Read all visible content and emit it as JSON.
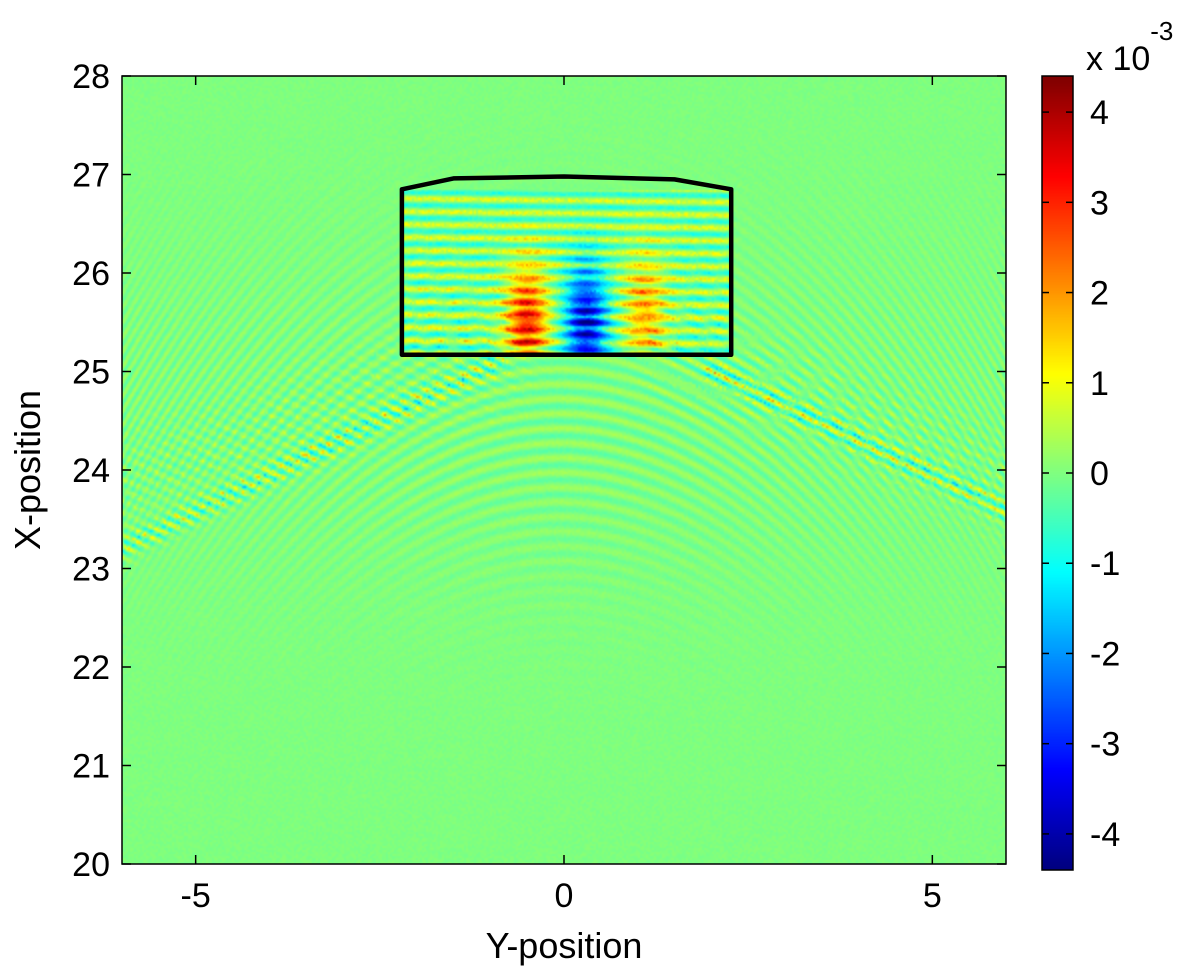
{
  "chart_data": {
    "type": "heatmap",
    "title": "",
    "xlabel": "Y-position",
    "ylabel": "X-position",
    "xlim": [
      -6,
      6
    ],
    "ylim": [
      20,
      28
    ],
    "x_ticks": [
      -5,
      0,
      5
    ],
    "x_tick_labels": [
      "-5",
      "0",
      "5"
    ],
    "y_ticks": [
      20,
      21,
      22,
      23,
      24,
      25,
      26,
      27,
      28
    ],
    "y_tick_labels": [
      "20",
      "21",
      "22",
      "23",
      "24",
      "25",
      "26",
      "27",
      "28"
    ],
    "colorbar": {
      "colormap": "jet",
      "clim": [
        -4.4,
        4.4
      ],
      "ticks": [
        -4,
        -3,
        -2,
        -1,
        0,
        1,
        2,
        3,
        4
      ],
      "tick_labels": [
        "-4",
        "-3",
        "-2",
        "-1",
        "0",
        "1",
        "2",
        "3",
        "4"
      ],
      "multiplier_base": "x 10",
      "multiplier_exponent": "-3"
    },
    "grid": false,
    "legend": "none",
    "background_value": 0,
    "outline": {
      "color": "#000000",
      "points": [
        [
          -2.2,
          25.17
        ],
        [
          2.27,
          25.17
        ],
        [
          2.27,
          26.85
        ],
        [
          1.5,
          26.95
        ],
        [
          0.0,
          26.98
        ],
        [
          -1.5,
          26.96
        ],
        [
          -2.2,
          26.85
        ]
      ]
    },
    "features": [
      {
        "name": "interior-fringes",
        "y_range": [
          -2.2,
          2.27
        ],
        "x_range": [
          25.17,
          26.85
        ],
        "amplitude": 1.2
      },
      {
        "name": "positive-lobe",
        "y_center": -0.5,
        "x_center": 25.5,
        "amplitude": 3.5
      },
      {
        "name": "negative-lobe",
        "y_center": 0.3,
        "x_center": 25.5,
        "amplitude": -4.0
      },
      {
        "name": "positive-lobe-right",
        "y_center": 1.1,
        "x_center": 25.6,
        "amplitude": 2.0
      },
      {
        "name": "diagonal-fringe-left",
        "from": [
          -6,
          23.8
        ],
        "to": [
          -0.9,
          25.2
        ],
        "amplitude": 0.9
      },
      {
        "name": "diagonal-fringe-right",
        "from": [
          1.5,
          25.2
        ],
        "to": [
          6,
          23.9
        ],
        "amplitude": 0.9
      },
      {
        "name": "scattered-diagonal-left",
        "from": [
          -0.9,
          25.1
        ],
        "to": [
          -6,
          23.2
        ],
        "amplitude": 2.5
      },
      {
        "name": "scattered-diagonal-right",
        "from": [
          2.0,
          25.0
        ],
        "to": [
          6,
          23.6
        ],
        "amplitude": 2.5
      }
    ]
  }
}
